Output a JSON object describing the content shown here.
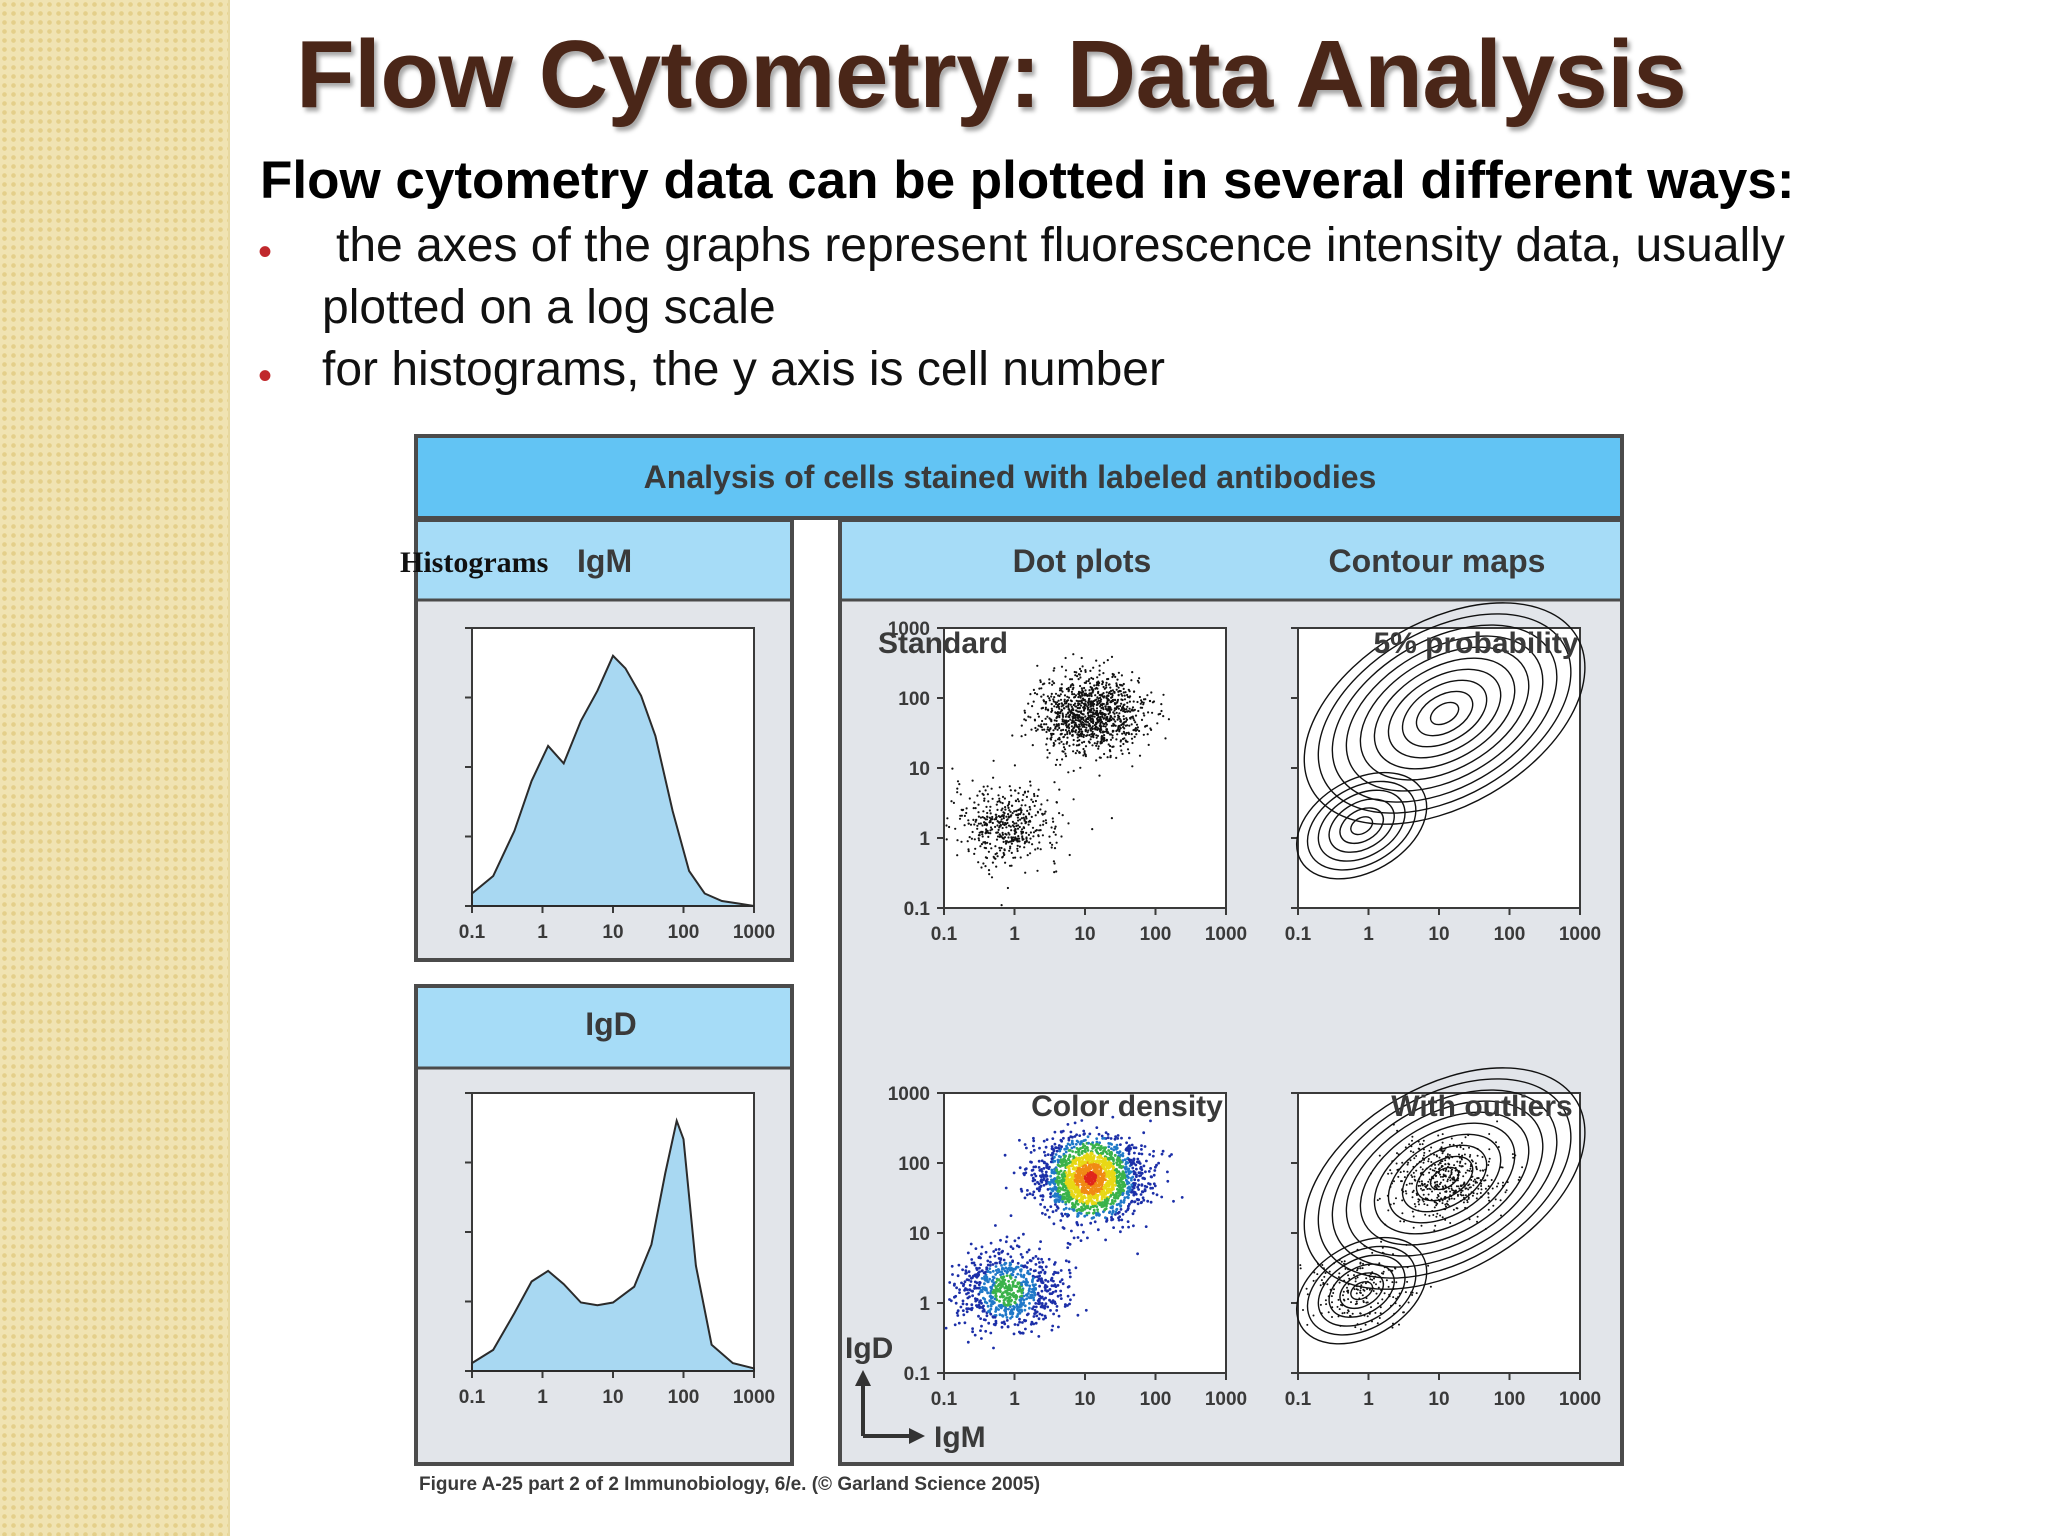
{
  "slide": {
    "title": "Flow Cytometry: Data Analysis",
    "subtitle": "Flow cytometry data can be plotted in several different ways:",
    "bullets": [
      {
        "line1": "the axes of the graphs represent fluorescence intensity data, usually",
        "line2": "plotted on a log scale"
      },
      {
        "line1": "for histograms, the y axis is cell number"
      }
    ]
  },
  "figure": {
    "header": "Analysis of cells stained with labeled antibodies",
    "histograms_label": "Histograms",
    "igm_label": "IgM",
    "igd_label": "IgD",
    "dot_plots_label": "Dot plots",
    "contour_maps_label": "Contour maps",
    "panel_titles": {
      "standard": "Standard",
      "probability": "5% probability",
      "color_density": "Color density",
      "with_outliers": "With outliers"
    },
    "axis_igd": "IgD",
    "axis_igm": "IgM",
    "x_ticks": [
      "0.1",
      "1",
      "10",
      "100",
      "1000"
    ],
    "y_ticks": [
      "1000",
      "100",
      "10",
      "1",
      "0.1"
    ],
    "caption": "Figure A-25 part 2 of 2  Immunobiology, 6/e. (© Garland Science 2005)",
    "colors": {
      "header_blue": "#62c4f4",
      "label_blue": "#a6dcf7",
      "hist_fill": "#a8d8f2",
      "panel_gray": "#e2e5ea"
    }
  },
  "chart_data": [
    {
      "type": "area",
      "title": "IgM",
      "x_scale": "log",
      "xlim": [
        0.1,
        1000
      ],
      "x": [
        0.1,
        0.2,
        0.4,
        0.7,
        1.2,
        2,
        3.5,
        6,
        10,
        15,
        25,
        40,
        70,
        120,
        200,
        350,
        600
      ],
      "y": [
        5,
        12,
        30,
        50,
        64,
        57,
        74,
        86,
        100,
        95,
        84,
        68,
        38,
        14,
        5,
        2,
        1
      ]
    },
    {
      "type": "area",
      "title": "IgD",
      "x_scale": "log",
      "xlim": [
        0.1,
        1000
      ],
      "x": [
        0.1,
        0.2,
        0.4,
        0.7,
        1.2,
        2,
        3.5,
        6,
        10,
        20,
        35,
        55,
        80,
        100,
        150,
        250,
        500,
        1000
      ],
      "y": [
        3,
        8,
        22,
        34,
        38,
        33,
        26,
        25,
        26,
        32,
        48,
        75,
        95,
        88,
        40,
        10,
        3,
        1
      ]
    },
    {
      "type": "scatter",
      "title": "Standard",
      "x_scale": "log",
      "y_scale": "log",
      "xlim": [
        0.1,
        1000
      ],
      "ylim": [
        0.1,
        1000
      ],
      "clusters": [
        {
          "x": 0.8,
          "y": 1.5,
          "relative_density": 0.3
        },
        {
          "x": 12,
          "y": 60,
          "relative_density": 0.7
        }
      ]
    },
    {
      "type": "scatter",
      "title": "5% probability",
      "x_scale": "log",
      "y_scale": "log",
      "xlim": [
        0.1,
        1000
      ],
      "ylim": [
        0.1,
        1000
      ],
      "clusters": [
        {
          "x": 0.8,
          "y": 1.5,
          "relative_density": 0.3
        },
        {
          "x": 12,
          "y": 60,
          "relative_density": 0.7
        }
      ]
    },
    {
      "type": "heatmap",
      "title": "Color density",
      "x_scale": "log",
      "y_scale": "log",
      "xlim": [
        0.1,
        1000
      ],
      "ylim": [
        0.1,
        1000
      ],
      "clusters": [
        {
          "x": 0.8,
          "y": 1.5,
          "relative_density": 0.3
        },
        {
          "x": 12,
          "y": 60,
          "relative_density": 0.7
        }
      ]
    },
    {
      "type": "scatter",
      "title": "With outliers",
      "x_scale": "log",
      "y_scale": "log",
      "xlim": [
        0.1,
        1000
      ],
      "ylim": [
        0.1,
        1000
      ],
      "clusters": [
        {
          "x": 0.8,
          "y": 1.5,
          "relative_density": 0.3
        },
        {
          "x": 12,
          "y": 60,
          "relative_density": 0.7
        }
      ]
    }
  ]
}
